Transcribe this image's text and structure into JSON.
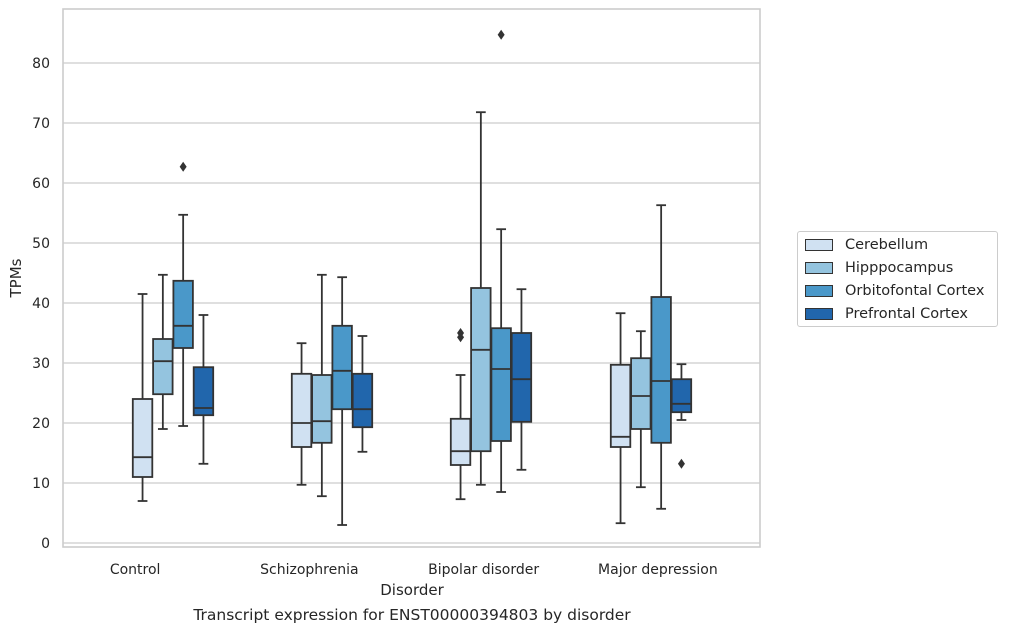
{
  "chart_data": {
    "type": "box",
    "title": "",
    "caption": "Transcript expression for ENST00000394803 by disorder",
    "xlabel": "Disorder",
    "ylabel": "TPMs",
    "ylim": [
      -1,
      89
    ],
    "yticks": [
      0,
      10,
      20,
      30,
      40,
      50,
      60,
      70,
      80
    ],
    "grid": true,
    "legend_position": "right",
    "categories": [
      "Control",
      "Schizophrenia",
      "Bipolar disorder",
      "Major depression"
    ],
    "series": [
      {
        "name": "Cerebellum",
        "color": "#d0e1f2",
        "boxes": [
          {
            "whisker_low": 7.0,
            "q1": 11.0,
            "median": 14.3,
            "q3": 24.0,
            "whisker_high": 41.5,
            "outliers": []
          },
          {
            "whisker_low": 9.7,
            "q1": 16.0,
            "median": 20.0,
            "q3": 28.2,
            "whisker_high": 33.3,
            "outliers": []
          },
          {
            "whisker_low": 7.3,
            "q1": 13.0,
            "median": 15.3,
            "q3": 20.7,
            "whisker_high": 28.0,
            "outliers": [
              34.3,
              35.0
            ]
          },
          {
            "whisker_low": 3.3,
            "q1": 16.0,
            "median": 17.7,
            "q3": 29.7,
            "whisker_high": 38.3,
            "outliers": []
          }
        ]
      },
      {
        "name": "Hipppocampus",
        "color": "#94c4df",
        "boxes": [
          {
            "whisker_low": 19.0,
            "q1": 24.8,
            "median": 30.3,
            "q3": 34.0,
            "whisker_high": 44.7,
            "outliers": []
          },
          {
            "whisker_low": 7.8,
            "q1": 16.7,
            "median": 20.3,
            "q3": 28.0,
            "whisker_high": 44.7,
            "outliers": []
          },
          {
            "whisker_low": 9.7,
            "q1": 15.3,
            "median": 32.2,
            "q3": 42.5,
            "whisker_high": 71.8,
            "outliers": []
          },
          {
            "whisker_low": 9.3,
            "q1": 19.0,
            "median": 24.5,
            "q3": 30.8,
            "whisker_high": 35.3,
            "outliers": []
          }
        ]
      },
      {
        "name": "Orbitofontal Cortex",
        "color": "#4a98c9",
        "boxes": [
          {
            "whisker_low": 19.5,
            "q1": 32.5,
            "median": 36.2,
            "q3": 43.7,
            "whisker_high": 54.7,
            "outliers": [
              62.7
            ]
          },
          {
            "whisker_low": 3.0,
            "q1": 22.3,
            "median": 28.7,
            "q3": 36.2,
            "whisker_high": 44.3,
            "outliers": []
          },
          {
            "whisker_low": 8.5,
            "q1": 17.0,
            "median": 29.0,
            "q3": 35.8,
            "whisker_high": 52.3,
            "outliers": [
              84.7
            ]
          },
          {
            "whisker_low": 5.7,
            "q1": 16.7,
            "median": 27.0,
            "q3": 41.0,
            "whisker_high": 56.3,
            "outliers": []
          }
        ]
      },
      {
        "name": "Prefrontal Cortex",
        "color": "#2166ac",
        "boxes": [
          {
            "whisker_low": 13.2,
            "q1": 21.3,
            "median": 22.5,
            "q3": 29.3,
            "whisker_high": 38.0,
            "outliers": []
          },
          {
            "whisker_low": 15.2,
            "q1": 19.3,
            "median": 22.3,
            "q3": 28.2,
            "whisker_high": 34.5,
            "outliers": []
          },
          {
            "whisker_low": 12.2,
            "q1": 20.2,
            "median": 27.3,
            "q3": 35.0,
            "whisker_high": 42.3,
            "outliers": []
          },
          {
            "whisker_low": 20.5,
            "q1": 21.8,
            "median": 23.2,
            "q3": 27.3,
            "whisker_high": 29.8,
            "outliers": [
              13.2
            ]
          }
        ]
      }
    ]
  }
}
